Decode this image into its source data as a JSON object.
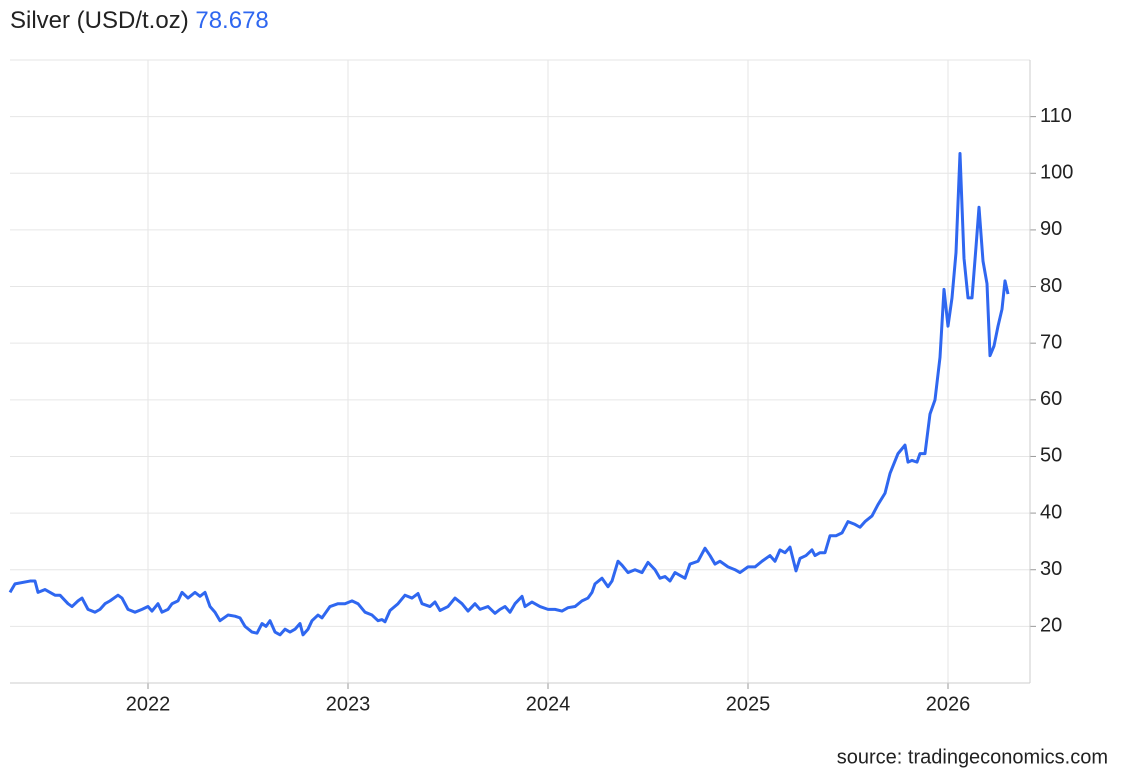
{
  "chart_data": {
    "type": "line",
    "title": "Silver (USD/t.oz)",
    "current_value": 78.678,
    "source": "source: tradingeconomics.com",
    "color": "#2f67f0",
    "grid": true,
    "xlim": [
      2021.31,
      2026.41
    ],
    "xticks": [
      2022,
      2023,
      2024,
      2025,
      2026
    ],
    "ylim": [
      10,
      120
    ],
    "yticks": [
      20,
      30,
      40,
      50,
      60,
      70,
      80,
      90,
      100,
      110
    ],
    "x": [
      2021.31,
      2021.335,
      2021.41,
      2021.435,
      2021.45,
      2021.485,
      2021.535,
      2021.56,
      2021.6,
      2021.62,
      2021.65,
      2021.67,
      2021.7,
      2021.735,
      2021.76,
      2021.785,
      2021.81,
      2021.85,
      2021.87,
      2021.9,
      2021.935,
      2021.97,
      2022.0,
      2022.02,
      2022.05,
      2022.07,
      2022.1,
      2022.12,
      2022.15,
      2022.17,
      2022.2,
      2022.235,
      2022.26,
      2022.285,
      2022.31,
      2022.335,
      2022.36,
      2022.4,
      2022.435,
      2022.46,
      2022.485,
      2022.52,
      2022.545,
      2022.57,
      2022.59,
      2022.61,
      2022.635,
      2022.66,
      2022.685,
      2022.71,
      2022.735,
      2022.76,
      2022.775,
      2022.8,
      2022.82,
      2022.85,
      2022.87,
      2022.91,
      2022.95,
      2022.985,
      2023.02,
      2023.05,
      2023.085,
      2023.12,
      2023.15,
      2023.17,
      2023.185,
      2023.21,
      2023.25,
      2023.285,
      2023.32,
      2023.35,
      2023.37,
      2023.41,
      2023.435,
      2023.46,
      2023.5,
      2023.535,
      2023.57,
      2023.6,
      2023.635,
      2023.66,
      2023.7,
      2023.735,
      2023.76,
      2023.785,
      2023.81,
      2023.835,
      2023.87,
      2023.885,
      2023.92,
      2023.96,
      2024.0,
      2024.035,
      2024.07,
      2024.1,
      2024.135,
      2024.17,
      2024.2,
      2024.22,
      2024.235,
      2024.27,
      2024.3,
      2024.32,
      2024.35,
      2024.37,
      2024.4,
      2024.435,
      2024.47,
      2024.5,
      2024.535,
      2024.56,
      2024.585,
      2024.61,
      2024.635,
      2024.66,
      2024.685,
      2024.71,
      2024.75,
      2024.785,
      2024.81,
      2024.835,
      2024.86,
      2024.9,
      2024.935,
      2024.96,
      2025.0,
      2025.035,
      2025.07,
      2025.11,
      2025.135,
      2025.16,
      2025.185,
      2025.21,
      2025.24,
      2025.26,
      2025.29,
      2025.32,
      2025.335,
      2025.36,
      2025.385,
      2025.41,
      2025.44,
      2025.47,
      2025.5,
      2025.535,
      2025.56,
      2025.585,
      2025.62,
      2025.65,
      2025.685,
      2025.71,
      2025.75,
      2025.785,
      2025.8,
      2025.82,
      2025.845,
      2025.86,
      2025.885,
      2025.91,
      2025.935,
      2025.96,
      2025.98,
      2026.0,
      2026.02,
      2026.04,
      2026.06,
      2026.08,
      2026.1,
      2026.12,
      2026.14,
      2026.155,
      2026.175,
      2026.195,
      2026.21,
      2026.23,
      2026.25,
      2026.27,
      2026.285,
      2026.3
    ],
    "values": [
      26,
      27.5,
      28,
      28,
      26,
      26.5,
      25.5,
      25.5,
      24,
      23.5,
      24.5,
      25,
      23,
      22.5,
      23,
      24,
      24.5,
      25.5,
      25,
      23,
      22.5,
      23,
      23.5,
      22.7,
      24,
      22.5,
      23,
      24,
      24.5,
      26,
      25,
      26,
      25.3,
      26,
      23.5,
      22.5,
      21,
      22,
      21.8,
      21.5,
      20,
      19,
      18.8,
      20.5,
      20,
      21,
      19,
      18.5,
      19.5,
      19,
      19.5,
      20.5,
      18.5,
      19.5,
      21,
      22,
      21.5,
      23.5,
      24,
      24,
      24.5,
      24,
      22.5,
      22,
      21,
      21.2,
      20.8,
      22.8,
      24,
      25.5,
      25,
      25.8,
      24,
      23.5,
      24.3,
      22.8,
      23.5,
      25,
      24,
      22.7,
      24,
      23,
      23.5,
      22.3,
      23,
      23.5,
      22.5,
      24,
      25.3,
      23.5,
      24.3,
      23.5,
      23,
      23,
      22.7,
      23.3,
      23.5,
      24.5,
      25,
      26,
      27.5,
      28.5,
      27,
      28,
      31.5,
      30.8,
      29.5,
      30,
      29.5,
      31.3,
      30,
      28.5,
      28.8,
      28,
      29.5,
      29,
      28.5,
      31,
      31.5,
      33.8,
      32.5,
      31,
      31.5,
      30.5,
      30,
      29.5,
      30.5,
      30.5,
      31.5,
      32.5,
      31.5,
      33.5,
      33,
      34,
      29.8,
      32,
      32.5,
      33.5,
      32.5,
      33,
      33,
      36,
      36,
      36.5,
      38.5,
      38,
      37.5,
      38.5,
      39.5,
      41.5,
      43.5,
      47,
      50.5,
      52,
      49,
      49.3,
      49,
      50.5,
      50.5,
      57.5,
      60,
      67.5,
      79.5,
      73,
      78,
      86,
      103.5,
      85,
      78,
      78,
      87,
      94,
      84.5,
      80.5,
      67.8,
      69.5,
      73,
      76,
      81,
      78.678
    ]
  }
}
